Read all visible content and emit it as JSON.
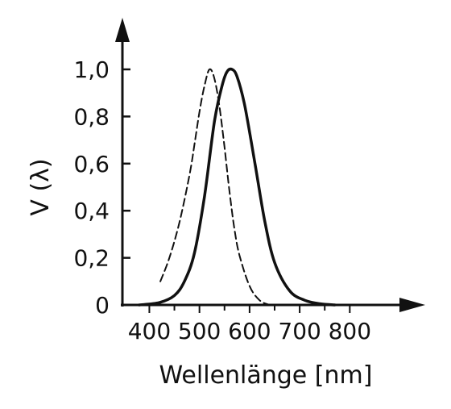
{
  "chart_data": {
    "type": "line",
    "xlabel": "Wellenlänge [nm]",
    "ylabel": "V (λ)",
    "xlim": [
      350,
      840
    ],
    "ylim": [
      0,
      1.15
    ],
    "x_ticks": [
      400,
      500,
      600,
      700,
      800
    ],
    "x_tick_labels": [
      "400",
      "500",
      "600",
      "700",
      "800"
    ],
    "y_ticks": [
      0,
      0.2,
      0.4,
      0.6,
      0.8,
      1.0
    ],
    "y_tick_labels": [
      "0",
      "0,2",
      "0,4",
      "0,6",
      "0,8",
      "1,0"
    ],
    "grid": false,
    "legend": "none",
    "series": [
      {
        "style": "dashed",
        "color": "#111111",
        "x": [
          422,
          440,
          460,
          480,
          490,
          500,
          510,
          520,
          530,
          540,
          550,
          560,
          570,
          580,
          600,
          620,
          640
        ],
        "y": [
          0.1,
          0.2,
          0.35,
          0.55,
          0.68,
          0.82,
          0.93,
          1.0,
          0.96,
          0.84,
          0.67,
          0.48,
          0.32,
          0.21,
          0.08,
          0.02,
          0.0
        ]
      },
      {
        "style": "solid",
        "color": "#111111",
        "x": [
          380,
          420,
          450,
          470,
          490,
          510,
          530,
          545,
          555,
          565,
          575,
          590,
          610,
          630,
          650,
          680,
          710,
          740,
          770
        ],
        "y": [
          0.0,
          0.01,
          0.04,
          0.1,
          0.22,
          0.46,
          0.78,
          0.93,
          0.99,
          1.0,
          0.97,
          0.85,
          0.61,
          0.36,
          0.18,
          0.06,
          0.02,
          0.005,
          0.0
        ]
      }
    ]
  }
}
